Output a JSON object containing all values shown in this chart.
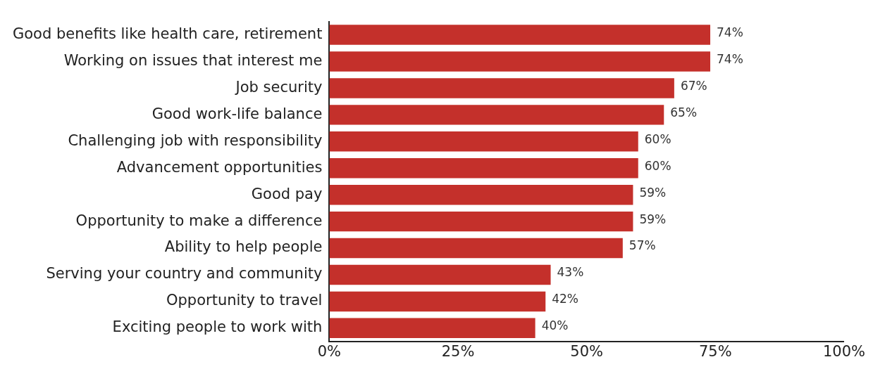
{
  "chart_data": {
    "type": "bar",
    "orientation": "horizontal",
    "categories": [
      "Good benefits like health care, retirement",
      "Working on issues that interest me",
      "Job security",
      "Good work-life balance",
      "Challenging job with responsibility",
      "Advancement opportunities",
      "Good pay",
      "Opportunity to make a difference",
      "Ability to help people",
      "Serving your country and community",
      "Opportunity to travel",
      "Exciting people to work with"
    ],
    "values": [
      74,
      74,
      67,
      65,
      60,
      60,
      59,
      59,
      57,
      43,
      42,
      40
    ],
    "value_labels": [
      "74%",
      "74%",
      "67%",
      "65%",
      "60%",
      "60%",
      "59%",
      "59%",
      "57%",
      "43%",
      "42%",
      "40%"
    ],
    "color": "#c4302b",
    "xlim": [
      0,
      100
    ],
    "xticks": [
      {
        "value": 0,
        "label": "0%"
      },
      {
        "value": 25,
        "label": "25%"
      },
      {
        "value": 50,
        "label": "50%"
      },
      {
        "value": 75,
        "label": "75%"
      },
      {
        "value": 100,
        "label": "100%"
      }
    ],
    "grid": false,
    "legend": false
  }
}
